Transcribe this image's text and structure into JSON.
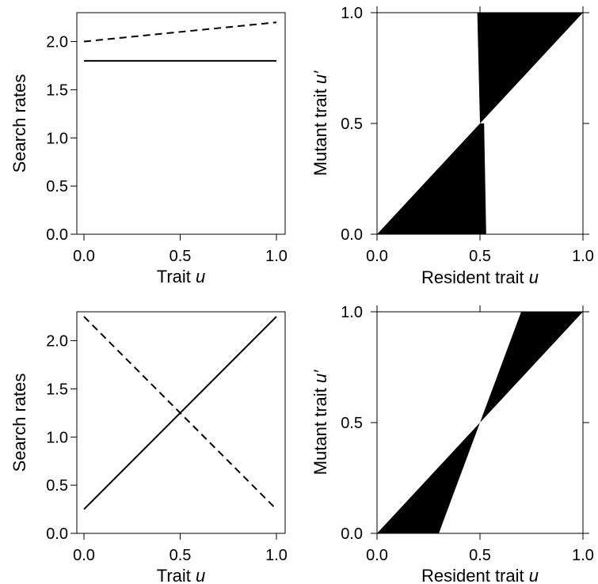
{
  "chart_data": [
    {
      "type": "line",
      "panel": "top-left",
      "xlabel": "Trait",
      "xlabel_var": "u",
      "ylabel": "Search rates",
      "xlim": [
        0,
        1
      ],
      "ylim": [
        0,
        2.3
      ],
      "xticks": [
        "0.0",
        "0.5",
        "1.0"
      ],
      "yticks": [
        "0.0",
        "0.5",
        "1.0",
        "1.5",
        "2.0"
      ],
      "series": [
        {
          "style": "solid",
          "x": [
            0,
            1
          ],
          "y": [
            1.8,
            1.8
          ]
        },
        {
          "style": "dashed",
          "x": [
            0,
            1
          ],
          "y": [
            2.0,
            2.2
          ]
        }
      ]
    },
    {
      "type": "area",
      "panel": "top-right",
      "xlabel": "Resident trait",
      "xlabel_var": "u",
      "ylabel": "Mutant trait",
      "ylabel_var": "u′",
      "xlim": [
        0,
        1
      ],
      "ylim": [
        0,
        1
      ],
      "xticks": [
        "0.0",
        "0.5",
        "1.0"
      ],
      "yticks": [
        "0.0",
        "0.5",
        "1.0"
      ],
      "regions": [
        {
          "fill": "#000000",
          "points": [
            [
              0,
              0
            ],
            [
              0.53,
              0
            ],
            [
              0.52,
              0.5
            ],
            [
              0.5,
              0.5
            ]
          ]
        },
        {
          "fill": "#000000",
          "points": [
            [
              0.5,
              0.5
            ],
            [
              0.487,
              1
            ],
            [
              1,
              1
            ]
          ]
        }
      ]
    },
    {
      "type": "line",
      "panel": "bottom-left",
      "xlabel": "Trait",
      "xlabel_var": "u",
      "ylabel": "Search rates",
      "xlim": [
        0,
        1
      ],
      "ylim": [
        0,
        2.3
      ],
      "xticks": [
        "0.0",
        "0.5",
        "1.0"
      ],
      "yticks": [
        "0.0",
        "0.5",
        "1.0",
        "1.5",
        "2.0"
      ],
      "series": [
        {
          "style": "solid",
          "x": [
            0,
            1
          ],
          "y": [
            0.25,
            2.25
          ]
        },
        {
          "style": "dashed",
          "x": [
            0,
            1
          ],
          "y": [
            2.25,
            0.25
          ]
        }
      ]
    },
    {
      "type": "area",
      "panel": "bottom-right",
      "xlabel": "Resident trait",
      "xlabel_var": "u",
      "ylabel": "Mutant trait",
      "ylabel_var": "u′",
      "xlim": [
        0,
        1
      ],
      "ylim": [
        0,
        1
      ],
      "xticks": [
        "0.0",
        "0.5",
        "1.0"
      ],
      "yticks": [
        "0.0",
        "0.5",
        "1.0"
      ],
      "regions": [
        {
          "fill": "#000000",
          "points": [
            [
              0,
              0
            ],
            [
              0.3,
              0
            ],
            [
              0.4,
              0.25
            ],
            [
              0.5,
              0.5
            ]
          ]
        },
        {
          "fill": "#000000",
          "points": [
            [
              0.5,
              0.5
            ],
            [
              0.62,
              0.8
            ],
            [
              0.7,
              1
            ],
            [
              1,
              1
            ]
          ]
        }
      ]
    }
  ]
}
